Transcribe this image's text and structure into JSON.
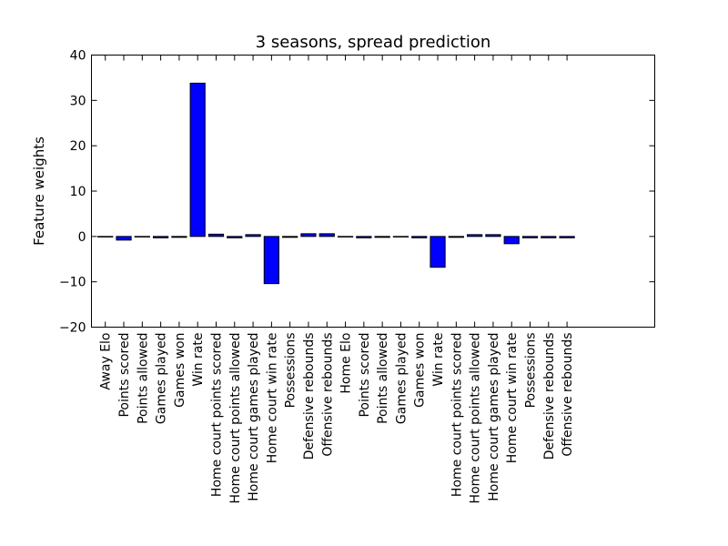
{
  "chart_data": {
    "type": "bar",
    "title": "3 seasons, spread prediction",
    "xlabel": "",
    "ylabel": "Feature weights",
    "ylim": [
      -20,
      40
    ],
    "yticks": [
      -20,
      -10,
      0,
      10,
      20,
      30,
      40
    ],
    "ytick_labels": [
      "−20",
      "−10",
      "0",
      "10",
      "20",
      "30",
      "40"
    ],
    "xlim": [
      -0.75,
      29.75
    ],
    "bar_color": "#0000ff",
    "grid": false,
    "categories": [
      "Away Elo",
      "Points scored",
      "Points allowed",
      "Games played",
      "Games won",
      "Win rate",
      "Home court points scored",
      "Home court points allowed",
      "Home court games played",
      "Home court win rate",
      "Possessions",
      "Defensive rebounds",
      "Offensive rebounds",
      "Home Elo",
      "Points scored",
      "Points allowed",
      "Games played",
      "Games won",
      "Win rate",
      "Home court points scored",
      "Home court points allowed",
      "Home court games played",
      "Home court win rate",
      "Possessions",
      "Defensive rebounds",
      "Offensive rebounds"
    ],
    "values": [
      0.0,
      -0.8,
      -0.1,
      -0.3,
      -0.2,
      33.8,
      0.5,
      -0.3,
      0.4,
      -10.4,
      -0.2,
      0.6,
      0.6,
      -0.1,
      -0.3,
      -0.2,
      0.0,
      -0.3,
      -6.8,
      -0.2,
      0.4,
      0.4,
      -1.6,
      -0.3,
      -0.3,
      -0.3
    ]
  }
}
